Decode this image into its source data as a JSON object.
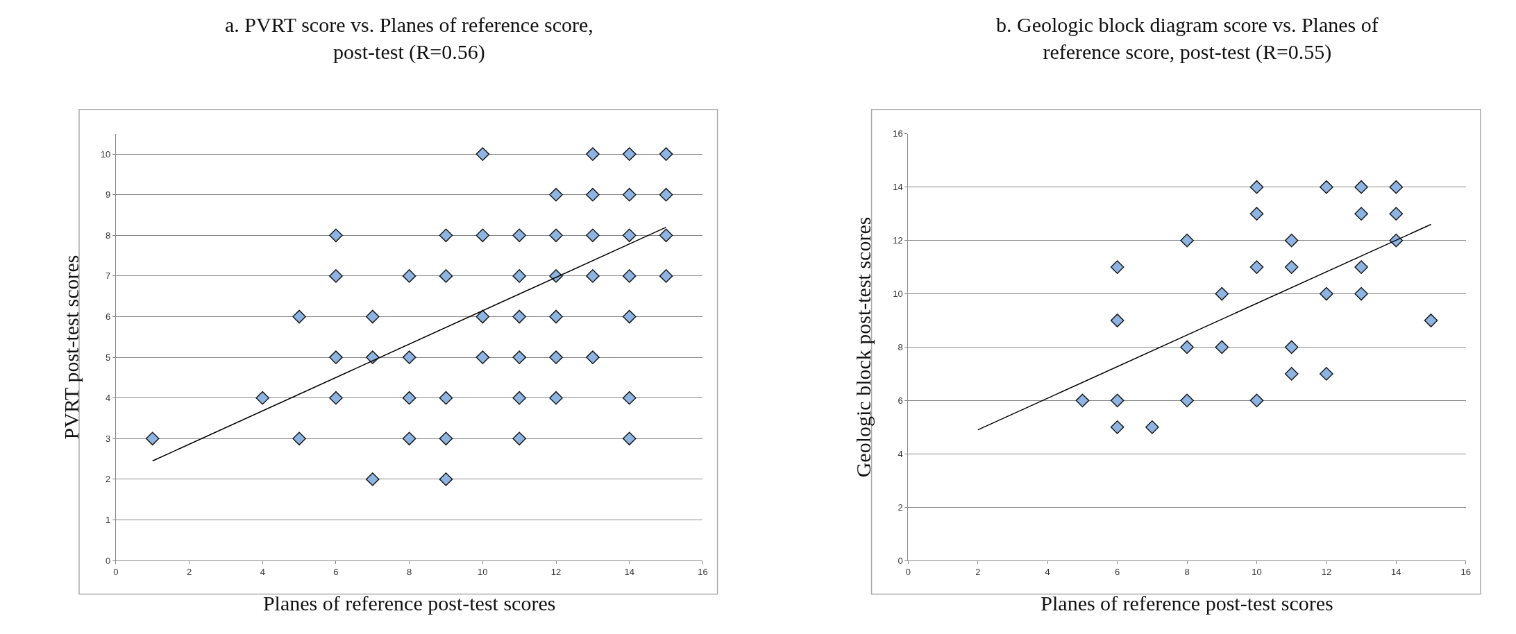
{
  "chart_data": [
    {
      "type": "scatter",
      "title": "a. PVRT score vs. Planes of reference score, post-test (R=0.56)",
      "xlabel": "Planes of reference post-test scores",
      "ylabel": "PVRT post-test scores",
      "xlim": [
        0,
        16
      ],
      "xticks": [
        0,
        2,
        4,
        6,
        8,
        10,
        12,
        14,
        16
      ],
      "ylim": [
        0,
        10.5
      ],
      "yticks": [
        0,
        1,
        2,
        3,
        4,
        5,
        6,
        7,
        8,
        9,
        10
      ],
      "grid": "y",
      "series": [
        {
          "marker": "diamond",
          "color": "#8db4e2",
          "x": [
            1,
            4,
            5,
            5,
            6,
            6,
            6,
            6,
            7,
            7,
            7,
            8,
            8,
            8,
            8,
            9,
            9,
            9,
            9,
            9,
            10,
            10,
            10,
            10,
            11,
            11,
            11,
            11,
            11,
            11,
            12,
            12,
            12,
            12,
            12,
            12,
            13,
            13,
            13,
            13,
            13,
            14,
            14,
            14,
            14,
            14,
            14,
            14,
            15,
            15,
            15,
            15
          ],
          "values": [
            3,
            4,
            6,
            3,
            8,
            7,
            5,
            4,
            6,
            5,
            2,
            7,
            5,
            4,
            3,
            8,
            7,
            4,
            3,
            2,
            10,
            8,
            6,
            5,
            8,
            7,
            6,
            5,
            4,
            3,
            9,
            8,
            7,
            6,
            5,
            4,
            10,
            9,
            8,
            7,
            5,
            10,
            9,
            8,
            7,
            6,
            4,
            3,
            10,
            9,
            8,
            7
          ]
        },
        {
          "type": "line",
          "color": "#000000",
          "x": [
            1,
            15
          ],
          "values": [
            2.45,
            8.2
          ]
        }
      ]
    },
    {
      "type": "scatter",
      "title": "b. Geologic block diagram score vs. Planes of reference score, post-test (R=0.55)",
      "xlabel": "Planes of reference post-test scores",
      "ylabel": "Geologic block post-test scores",
      "xlim": [
        0,
        16
      ],
      "xticks": [
        0,
        2,
        4,
        6,
        8,
        10,
        12,
        14,
        16
      ],
      "ylim": [
        0,
        16
      ],
      "yticks": [
        0,
        2,
        4,
        6,
        8,
        10,
        12,
        14,
        16
      ],
      "grid": "y",
      "series": [
        {
          "marker": "diamond",
          "color": "#8db4e2",
          "x": [
            5,
            6,
            6,
            6,
            6,
            7,
            8,
            8,
            8,
            9,
            9,
            10,
            10,
            10,
            10,
            11,
            11,
            11,
            11,
            12,
            12,
            12,
            13,
            13,
            13,
            13,
            14,
            14,
            14,
            15
          ],
          "values": [
            6,
            11,
            9,
            6,
            5,
            5,
            12,
            8,
            6,
            10,
            8,
            14,
            13,
            11,
            6,
            12,
            11,
            8,
            7,
            14,
            10,
            7,
            14,
            13,
            11,
            10,
            14,
            13,
            12,
            9
          ]
        },
        {
          "type": "line",
          "color": "#000000",
          "x": [
            2,
            15
          ],
          "values": [
            4.9,
            12.6
          ]
        }
      ]
    }
  ]
}
